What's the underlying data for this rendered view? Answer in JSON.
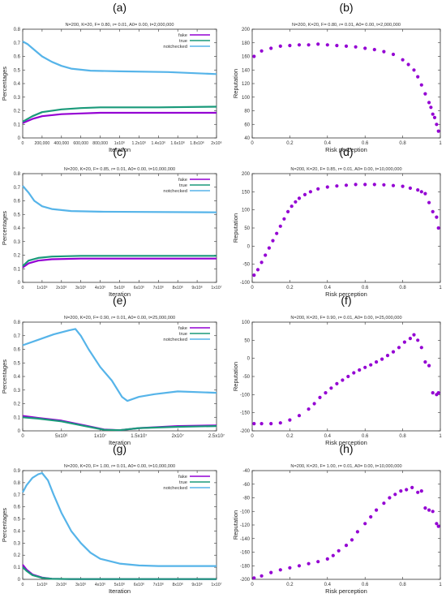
{
  "chart_data": [
    {
      "panel": "(a)",
      "type": "line",
      "title": "N=200, K=20, F= 0.80, r= 0.01, A0= 0.00, t=2,000,000",
      "xlabel": "Iteration",
      "ylabel": "Percentages",
      "xlim": [
        0,
        2000000
      ],
      "ylim": [
        0,
        0.8
      ],
      "xticks": [
        0,
        200000,
        400000,
        600000,
        800000,
        1000000,
        1200000,
        1400000,
        1600000,
        1800000,
        2000000
      ],
      "xtick_labels": [
        "0",
        "200,000",
        "400,000",
        "600,000",
        "800,000",
        "1x10⁶",
        "1.2x10⁶",
        "1.4x10⁶",
        "1.6x10⁶",
        "1.8x10⁶",
        "2x10⁶"
      ],
      "yticks": [
        0,
        0.1,
        0.2,
        0.3,
        0.4,
        0.5,
        0.6,
        0.7,
        0.8
      ],
      "ytick_labels": [
        "0",
        "0.1",
        "0.2",
        "0.3",
        "0.4",
        "0.5",
        "0.6",
        "0.7",
        "0.8"
      ],
      "legend_position": "top-right",
      "series": [
        {
          "name": "fake",
          "color": "#9400d3",
          "x": [
            0,
            100000,
            200000,
            400000,
            600000,
            800000,
            1000000,
            1400000,
            2000000
          ],
          "y": [
            0.11,
            0.14,
            0.16,
            0.175,
            0.18,
            0.185,
            0.185,
            0.185,
            0.185
          ]
        },
        {
          "name": "true",
          "color": "#1a9a7a",
          "x": [
            0,
            100000,
            200000,
            400000,
            600000,
            800000,
            1000000,
            1400000,
            2000000
          ],
          "y": [
            0.12,
            0.16,
            0.19,
            0.21,
            0.22,
            0.225,
            0.225,
            0.225,
            0.23
          ]
        },
        {
          "name": "notchecked",
          "color": "#56b4e9",
          "x": [
            0,
            50000,
            100000,
            200000,
            300000,
            400000,
            500000,
            700000,
            1000000,
            1500000,
            2000000
          ],
          "y": [
            0.71,
            0.69,
            0.66,
            0.6,
            0.56,
            0.53,
            0.51,
            0.495,
            0.49,
            0.485,
            0.47
          ]
        }
      ]
    },
    {
      "panel": "(b)",
      "type": "scatter",
      "title": "N=200, K=20, F= 0.80, r= 0.01, A0= 0.00, t=2,000,000",
      "xlabel": "Risk perception",
      "ylabel": "Reputation",
      "xlim": [
        0,
        1
      ],
      "ylim": [
        40,
        200
      ],
      "xticks": [
        0,
        0.2,
        0.4,
        0.6,
        0.8,
        1
      ],
      "xtick_labels": [
        "0",
        "0.2",
        "0.4",
        "0.6",
        "0.8",
        "1"
      ],
      "yticks": [
        40,
        60,
        80,
        100,
        120,
        140,
        160,
        180,
        200
      ],
      "ytick_labels": [
        "40",
        "60",
        "80",
        "100",
        "120",
        "140",
        "160",
        "180",
        "200"
      ],
      "series": [
        {
          "color": "#9400d3",
          "x": [
            0.01,
            0.05,
            0.1,
            0.15,
            0.2,
            0.25,
            0.3,
            0.35,
            0.4,
            0.45,
            0.5,
            0.55,
            0.6,
            0.65,
            0.7,
            0.75,
            0.8,
            0.83,
            0.86,
            0.88,
            0.9,
            0.92,
            0.94,
            0.95,
            0.96,
            0.97,
            0.98,
            0.99
          ],
          "y": [
            160,
            168,
            172,
            175,
            176,
            177,
            177,
            178,
            177,
            176,
            175,
            174,
            172,
            170,
            167,
            163,
            155,
            148,
            140,
            130,
            118,
            105,
            92,
            85,
            75,
            70,
            60,
            50
          ]
        }
      ]
    },
    {
      "panel": "(c)",
      "type": "line",
      "title": "N=200, K=20, F= 0.85, r= 0.01, A0= 0.00, t=10,000,000",
      "xlabel": "Iteration",
      "ylabel": "Percentages",
      "xlim": [
        0,
        10000000
      ],
      "ylim": [
        0,
        0.8
      ],
      "xticks": [
        0,
        1000000,
        2000000,
        3000000,
        4000000,
        5000000,
        6000000,
        7000000,
        8000000,
        9000000,
        10000000
      ],
      "xtick_labels": [
        "0",
        "1x10⁶",
        "2x10⁶",
        "3x10⁶",
        "4x10⁶",
        "5x10⁶",
        "6x10⁶",
        "7x10⁶",
        "8x10⁶",
        "9x10⁶",
        "1x10⁷"
      ],
      "yticks": [
        0,
        0.1,
        0.2,
        0.3,
        0.4,
        0.5,
        0.6,
        0.7,
        0.8
      ],
      "ytick_labels": [
        "0",
        "0.1",
        "0.2",
        "0.3",
        "0.4",
        "0.5",
        "0.6",
        "0.7",
        "0.8"
      ],
      "legend_position": "top-right",
      "series": [
        {
          "name": "fake",
          "color": "#9400d3",
          "x": [
            0,
            300000,
            800000,
            1500000,
            3000000,
            10000000
          ],
          "y": [
            0.11,
            0.14,
            0.16,
            0.17,
            0.175,
            0.175
          ]
        },
        {
          "name": "true",
          "color": "#1a9a7a",
          "x": [
            0,
            300000,
            800000,
            1500000,
            3000000,
            10000000
          ],
          "y": [
            0.12,
            0.16,
            0.18,
            0.19,
            0.195,
            0.195
          ]
        },
        {
          "name": "notchecked",
          "color": "#56b4e9",
          "x": [
            0,
            300000,
            600000,
            1000000,
            1500000,
            2500000,
            4000000,
            10000000
          ],
          "y": [
            0.71,
            0.66,
            0.6,
            0.56,
            0.54,
            0.525,
            0.52,
            0.515
          ]
        }
      ]
    },
    {
      "panel": "(d)",
      "type": "scatter",
      "title": "N=200, K=20, F= 0.85, r= 0.01, A0= 0.00, t=10,000,000",
      "xlabel": "Risk perception",
      "ylabel": "Reputation",
      "xlim": [
        0,
        1
      ],
      "ylim": [
        -100,
        200
      ],
      "xticks": [
        0,
        0.2,
        0.4,
        0.6,
        0.8,
        1
      ],
      "xtick_labels": [
        "0",
        "0.2",
        "0.4",
        "0.6",
        "0.8",
        "1"
      ],
      "yticks": [
        -100,
        -50,
        0,
        50,
        100,
        150,
        200
      ],
      "ytick_labels": [
        "-100",
        "-50",
        "0",
        "50",
        "100",
        "150",
        "200"
      ],
      "series": [
        {
          "color": "#9400d3",
          "x": [
            0.01,
            0.03,
            0.05,
            0.07,
            0.09,
            0.11,
            0.13,
            0.15,
            0.17,
            0.19,
            0.21,
            0.23,
            0.25,
            0.28,
            0.31,
            0.35,
            0.4,
            0.45,
            0.5,
            0.55,
            0.6,
            0.65,
            0.7,
            0.75,
            0.8,
            0.84,
            0.88,
            0.9,
            0.92,
            0.94,
            0.96,
            0.98,
            0.99
          ],
          "y": [
            -80,
            -65,
            -45,
            -25,
            -5,
            15,
            35,
            55,
            75,
            95,
            110,
            122,
            132,
            142,
            150,
            158,
            163,
            166,
            168,
            170,
            170,
            170,
            169,
            167,
            165,
            160,
            155,
            150,
            145,
            120,
            95,
            80,
            50
          ]
        }
      ]
    },
    {
      "panel": "(e)",
      "type": "line",
      "title": "N=200, K=20, F= 0.90, r= 0.01, A0= 0.00, t=25,000,000",
      "xlabel": "Iteration",
      "ylabel": "Percentages",
      "xlim": [
        0,
        25000000
      ],
      "ylim": [
        0,
        0.8
      ],
      "xticks": [
        0,
        5000000,
        10000000,
        15000000,
        20000000,
        25000000
      ],
      "xtick_labels": [
        "0",
        "5x10⁶",
        "1x10⁷",
        "1.5x10⁷",
        "2x10⁷",
        "2.5x10⁷"
      ],
      "yticks": [
        0,
        0.1,
        0.2,
        0.3,
        0.4,
        0.5,
        0.6,
        0.7,
        0.8
      ],
      "ytick_labels": [
        "0",
        "0.1",
        "0.2",
        "0.3",
        "0.4",
        "0.5",
        "0.6",
        "0.7",
        "0.8"
      ],
      "legend_position": "top-right",
      "series": [
        {
          "name": "fake",
          "color": "#9400d3",
          "x": [
            0,
            2000000,
            5000000,
            8000000,
            10500000,
            12500000,
            15000000,
            20000000,
            25000000
          ],
          "y": [
            0.11,
            0.095,
            0.075,
            0.04,
            0.01,
            0.005,
            0.02,
            0.035,
            0.04
          ]
        },
        {
          "name": "true",
          "color": "#1a9a7a",
          "x": [
            0,
            2000000,
            5000000,
            8000000,
            10500000,
            12500000,
            15000000,
            20000000,
            25000000
          ],
          "y": [
            0.1,
            0.09,
            0.07,
            0.035,
            0.008,
            0.005,
            0.02,
            0.03,
            0.035
          ]
        },
        {
          "name": "notchecked",
          "color": "#56b4e9",
          "x": [
            0,
            2000000,
            4000000,
            6000000,
            6800000,
            7500000,
            8500000,
            10000000,
            11500000,
            12800000,
            13500000,
            15000000,
            17000000,
            20000000,
            25000000
          ],
          "y": [
            0.63,
            0.67,
            0.71,
            0.74,
            0.75,
            0.7,
            0.6,
            0.47,
            0.37,
            0.25,
            0.22,
            0.25,
            0.27,
            0.29,
            0.28
          ]
        }
      ]
    },
    {
      "panel": "(f)",
      "type": "scatter",
      "title": "N=200, K=20, F= 0.90, r= 0.01, A0= 0.00, t=25,000,000",
      "xlabel": "Risk perception",
      "ylabel": "Reputation",
      "xlim": [
        0,
        1
      ],
      "ylim": [
        -200,
        100
      ],
      "xticks": [
        0,
        0.2,
        0.4,
        0.6,
        0.8,
        1
      ],
      "xtick_labels": [
        "0",
        "0.2",
        "0.4",
        "0.6",
        "0.8",
        "1"
      ],
      "yticks": [
        -200,
        -150,
        -100,
        -50,
        0,
        50,
        100
      ],
      "ytick_labels": [
        "-200",
        "-150",
        "-100",
        "-50",
        "0",
        "50",
        "100"
      ],
      "series": [
        {
          "color": "#9400d3",
          "x": [
            0.01,
            0.05,
            0.1,
            0.15,
            0.2,
            0.25,
            0.3,
            0.33,
            0.36,
            0.39,
            0.42,
            0.45,
            0.48,
            0.51,
            0.54,
            0.57,
            0.6,
            0.63,
            0.66,
            0.69,
            0.72,
            0.75,
            0.78,
            0.81,
            0.84,
            0.86,
            0.88,
            0.9,
            0.92,
            0.94,
            0.96,
            0.98,
            0.99
          ],
          "y": [
            -180,
            -180,
            -180,
            -178,
            -170,
            -158,
            -140,
            -125,
            -108,
            -95,
            -82,
            -70,
            -60,
            -50,
            -40,
            -32,
            -25,
            -18,
            -10,
            -2,
            8,
            18,
            30,
            45,
            55,
            65,
            50,
            30,
            -10,
            -20,
            -95,
            -100,
            -95
          ]
        }
      ]
    },
    {
      "panel": "(g)",
      "type": "line",
      "title": "N=200, K=20, F= 1.00, r= 0.01, A0= 0.00, t=10,000,000",
      "xlabel": "Iteration",
      "ylabel": "Percentages",
      "xlim": [
        0,
        10000000
      ],
      "ylim": [
        0,
        0.9
      ],
      "xticks": [
        0,
        1000000,
        2000000,
        3000000,
        4000000,
        5000000,
        6000000,
        7000000,
        8000000,
        9000000,
        10000000
      ],
      "xtick_labels": [
        "0",
        "1x10⁶",
        "2x10⁶",
        "3x10⁶",
        "4x10⁶",
        "5x10⁶",
        "6x10⁶",
        "7x10⁶",
        "8x10⁶",
        "9x10⁶",
        "1x10⁷"
      ],
      "yticks": [
        0,
        0.1,
        0.2,
        0.3,
        0.4,
        0.5,
        0.6,
        0.7,
        0.8,
        0.9
      ],
      "ytick_labels": [
        "0",
        "0.1",
        "0.2",
        "0.3",
        "0.4",
        "0.5",
        "0.6",
        "0.7",
        "0.8",
        "0.9"
      ],
      "legend_position": "top-right",
      "series": [
        {
          "name": "fake",
          "color": "#9400d3",
          "x": [
            0,
            200000,
            500000,
            1000000,
            1500000,
            2500000,
            10000000
          ],
          "y": [
            0.12,
            0.08,
            0.04,
            0.015,
            0.005,
            0.002,
            0.002
          ]
        },
        {
          "name": "true",
          "color": "#1a9a7a",
          "x": [
            0,
            200000,
            500000,
            1000000,
            1500000,
            2500000,
            10000000
          ],
          "y": [
            0.1,
            0.07,
            0.035,
            0.012,
            0.004,
            0.002,
            0.002
          ]
        },
        {
          "name": "notchecked",
          "color": "#56b4e9",
          "x": [
            0,
            200000,
            500000,
            800000,
            1000000,
            1300000,
            1600000,
            2000000,
            2500000,
            3000000,
            3500000,
            4000000,
            5000000,
            6000000,
            7000000,
            8000000,
            10000000
          ],
          "y": [
            0.72,
            0.78,
            0.84,
            0.87,
            0.88,
            0.82,
            0.7,
            0.55,
            0.4,
            0.3,
            0.22,
            0.17,
            0.13,
            0.115,
            0.11,
            0.11,
            0.11
          ]
        }
      ]
    },
    {
      "panel": "(h)",
      "type": "scatter",
      "title": "N=200, K=20, F= 1.00, r= 0.01, A0= 0.00, t=10,000,000",
      "xlabel": "Risk perception",
      "ylabel": "Reputation",
      "xlim": [
        0,
        1
      ],
      "ylim": [
        -200,
        -40
      ],
      "xticks": [
        0,
        0.2,
        0.4,
        0.6,
        0.8,
        1
      ],
      "xtick_labels": [
        "0",
        "0.2",
        "0.4",
        "0.6",
        "0.8",
        "1"
      ],
      "yticks": [
        -200,
        -180,
        -160,
        -140,
        -120,
        -100,
        -80,
        -60,
        -40
      ],
      "ytick_labels": [
        "-200",
        "-180",
        "-160",
        "-140",
        "-120",
        "-100",
        "-80",
        "-60",
        "-40"
      ],
      "series": [
        {
          "color": "#9400d3",
          "x": [
            0.01,
            0.05,
            0.1,
            0.15,
            0.2,
            0.25,
            0.3,
            0.35,
            0.4,
            0.43,
            0.46,
            0.5,
            0.53,
            0.56,
            0.6,
            0.63,
            0.66,
            0.7,
            0.73,
            0.76,
            0.79,
            0.82,
            0.85,
            0.88,
            0.9,
            0.92,
            0.94,
            0.96,
            0.98,
            0.99
          ],
          "y": [
            -198,
            -195,
            -190,
            -186,
            -183,
            -180,
            -177,
            -174,
            -170,
            -165,
            -158,
            -150,
            -142,
            -130,
            -118,
            -108,
            -98,
            -88,
            -80,
            -75,
            -70,
            -68,
            -65,
            -72,
            -70,
            -95,
            -98,
            -100,
            -118,
            -122
          ]
        }
      ]
    }
  ]
}
